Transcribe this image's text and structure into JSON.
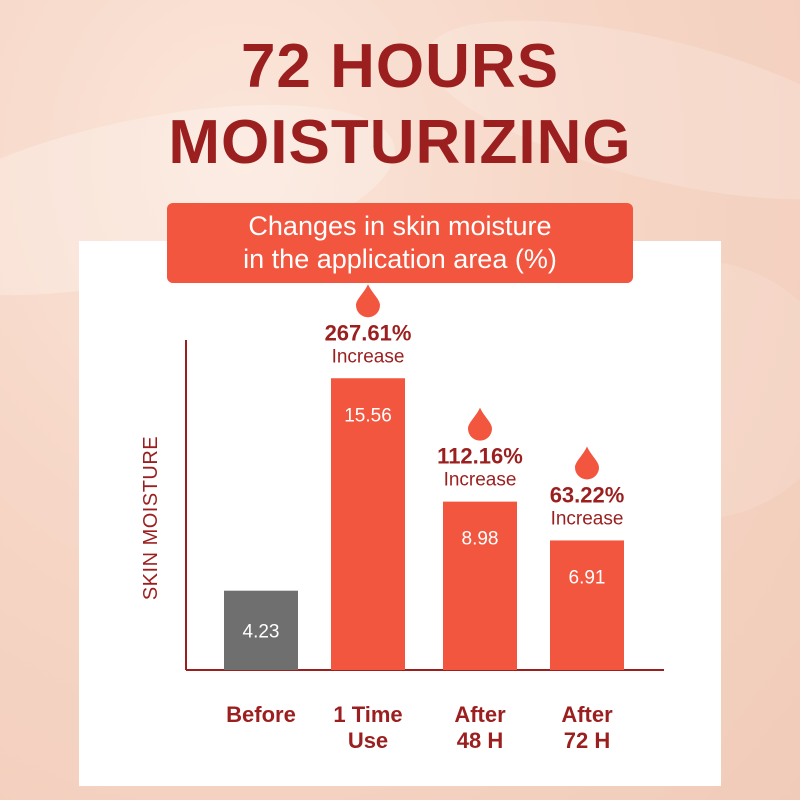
{
  "headline": {
    "line1": "72 HOURS",
    "line2": "MOISTURIZING"
  },
  "colors": {
    "brand_dark": "#9b1f1f",
    "accent": "#f2563f",
    "before_bar": "#6f6f6f"
  },
  "chart_data": {
    "type": "bar",
    "title_lines": [
      "Changes in skin moisture",
      "in the application area (%)"
    ],
    "ylabel": "SKIN MOISTURE",
    "xlabel": "",
    "ylim": [
      0,
      17.6
    ],
    "grid": false,
    "categories": [
      [
        "Before"
      ],
      [
        "1 Time",
        "Use"
      ],
      [
        "After",
        "48 H"
      ],
      [
        "After",
        "72 H"
      ]
    ],
    "values": [
      4.23,
      15.56,
      8.98,
      6.91
    ],
    "value_labels": [
      "4.23",
      "15.56",
      "8.98",
      "6.91"
    ],
    "bar_colors": [
      "#6f6f6f",
      "#f2563f",
      "#f2563f",
      "#f2563f"
    ],
    "annotations": [
      null,
      {
        "percent": "267.61%",
        "text": "Increase",
        "icon": "water-drop-icon"
      },
      {
        "percent": "112.16%",
        "text": "Increase",
        "icon": "water-drop-icon"
      },
      {
        "percent": "63.22%",
        "text": "Increase",
        "icon": "water-drop-icon"
      }
    ]
  }
}
